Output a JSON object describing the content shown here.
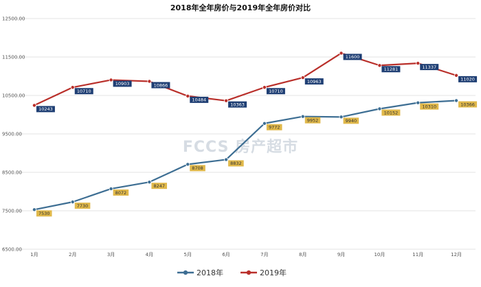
{
  "chart_data": {
    "type": "line",
    "title": "2018年全年房价与2019年全年房价对比",
    "categories": [
      "1月",
      "2月",
      "3月",
      "4月",
      "5月",
      "6月",
      "7月",
      "8月",
      "9月",
      "10月",
      "11月",
      "12月"
    ],
    "ylim": [
      6500,
      12500
    ],
    "yticks": [
      6500,
      7500,
      8500,
      9500,
      10500,
      11500,
      12500
    ],
    "grid": true,
    "legend_position": "bottom",
    "series": [
      {
        "name": "2018年",
        "color": "#3d6e93",
        "label_bg": "#e0b84a",
        "label_color": "#333333",
        "values": [
          7530,
          7730,
          8072,
          8247,
          8708,
          8832,
          9772,
          9952,
          9940,
          10152,
          10310,
          10366
        ]
      },
      {
        "name": "2019年",
        "color": "#b92f2a",
        "label_bg": "#1f3f74",
        "label_color": "#ffffff",
        "values": [
          10243,
          10710,
          10903,
          10866,
          10484,
          10363,
          10710,
          10963,
          11600,
          11281,
          11337,
          11020
        ]
      }
    ]
  },
  "watermark": "FCCS 房产超市"
}
